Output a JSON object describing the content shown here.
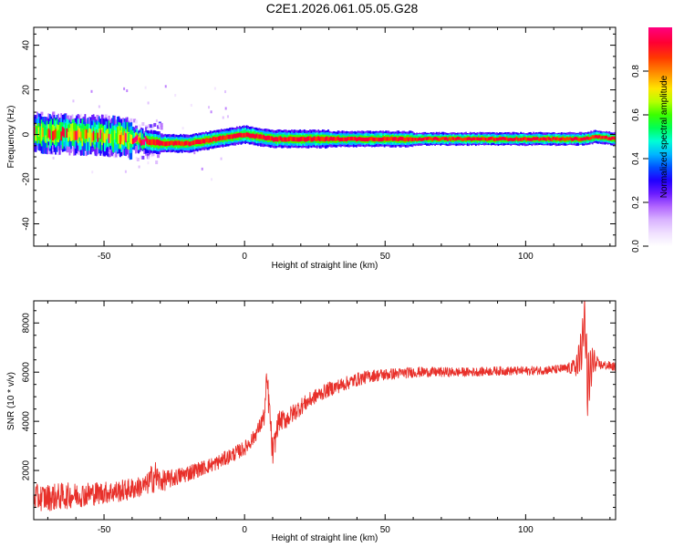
{
  "title": "C2E1.2026.061.05.05.G28",
  "colors": {
    "snr_line": "#e8302a",
    "colormap": [
      "#ffffff",
      "#f0e0ff",
      "#d9b3ff",
      "#b266ff",
      "#6a1bff",
      "#2000ff",
      "#0050ff",
      "#00b7ff",
      "#00ffd5",
      "#00ff55",
      "#3bff00",
      "#b6ff00",
      "#ffe500",
      "#ff9a00",
      "#ff3a00",
      "#ff0033",
      "#ff0080"
    ]
  },
  "chart_data": [
    {
      "type": "heatmap",
      "xlabel": "Height of straight line (km)",
      "ylabel": "Frequency (Hz)",
      "xlim": [
        -75,
        132
      ],
      "ylim": [
        -50,
        48
      ],
      "xticks": [
        -50,
        0,
        50,
        100
      ],
      "yticks": [
        -40,
        -20,
        0,
        20,
        40
      ],
      "colorbar": {
        "label": "Normalized spectral amplitude",
        "range": [
          0,
          1
        ],
        "ticks": [
          "0.0",
          "0.2",
          "0.4",
          "0.6",
          "0.8"
        ]
      },
      "ridge_frequency_hz": [
        [
          -75,
          1
        ],
        [
          -60,
          0
        ],
        [
          -45,
          -1
        ],
        [
          -40,
          -2
        ],
        [
          -35,
          -3
        ],
        [
          -30,
          -4
        ],
        [
          -20,
          -4
        ],
        [
          -10,
          -2
        ],
        [
          -5,
          -1
        ],
        [
          0,
          0
        ],
        [
          5,
          -1
        ],
        [
          10,
          -2
        ],
        [
          20,
          -2
        ],
        [
          40,
          -2
        ],
        [
          60,
          -2
        ],
        [
          80,
          -2
        ],
        [
          100,
          -2
        ],
        [
          120,
          -2
        ],
        [
          125,
          -1
        ],
        [
          132,
          -2
        ]
      ]
    },
    {
      "type": "line",
      "xlabel": "Height of straight line (km)",
      "ylabel": "SNR (10 * v/v)",
      "xlim": [
        -75,
        132
      ],
      "ylim": [
        0,
        8900
      ],
      "xticks": [
        -50,
        0,
        50,
        100
      ],
      "yticks": [
        2000,
        4000,
        6000,
        8000
      ],
      "series": [
        {
          "x": [
            -75,
            -70,
            -65,
            -60,
            -55,
            -50,
            -45,
            -40,
            -35,
            -32,
            -30,
            -25,
            -20,
            -15,
            -10,
            -5,
            0,
            3,
            5,
            7,
            8,
            9,
            10,
            12,
            15,
            20,
            25,
            30,
            35,
            40,
            45,
            50,
            55,
            60,
            65,
            70,
            80,
            90,
            100,
            110,
            115,
            118,
            120,
            121,
            122,
            124,
            126,
            130,
            132
          ],
          "y": [
            900,
            900,
            950,
            1000,
            1050,
            1100,
            1150,
            1250,
            1400,
            1800,
            1550,
            1700,
            1900,
            2100,
            2300,
            2600,
            2900,
            3300,
            3700,
            4200,
            5600,
            4300,
            2600,
            4000,
            4100,
            4600,
            5000,
            5300,
            5500,
            5700,
            5850,
            5900,
            5950,
            6000,
            6000,
            6000,
            6000,
            6050,
            6050,
            6100,
            6150,
            6200,
            7000,
            8400,
            5500,
            6500,
            6300,
            6250,
            6200
          ],
          "amplitude": [
            550,
            550,
            550,
            500,
            500,
            450,
            450,
            450,
            400,
            700,
            450,
            350,
            350,
            300,
            300,
            300,
            300,
            300,
            300,
            400,
            800,
            500,
            600,
            400,
            400,
            350,
            300,
            300,
            280,
            280,
            250,
            250,
            220,
            220,
            200,
            200,
            180,
            180,
            180,
            180,
            200,
            400,
            900,
            700,
            1400,
            500,
            200,
            180,
            180
          ]
        }
      ]
    }
  ]
}
